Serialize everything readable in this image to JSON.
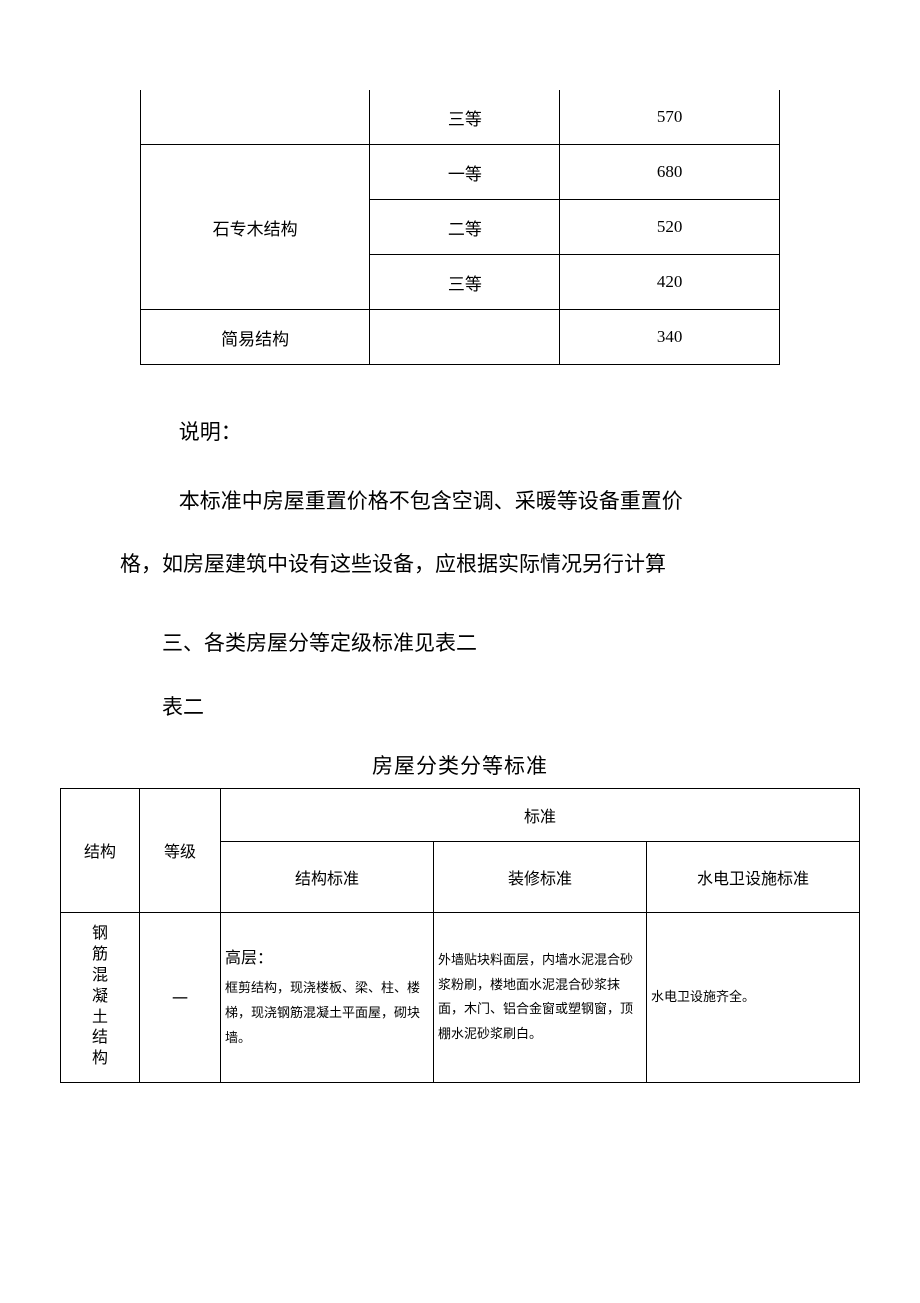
{
  "table1": {
    "rows": [
      {
        "structure": "",
        "grade": "三等",
        "value": "570",
        "rowspan": 1,
        "showStructure": false
      },
      {
        "structure": "石专木结构",
        "grade": "一等",
        "value": "680",
        "rowspan": 3,
        "showStructure": true
      },
      {
        "structure": "",
        "grade": "二等",
        "value": "520",
        "rowspan": 0,
        "showStructure": false
      },
      {
        "structure": "",
        "grade": "三等",
        "value": "420",
        "rowspan": 0,
        "showStructure": false
      },
      {
        "structure": "简易结构",
        "grade": "",
        "value": "340",
        "rowspan": 1,
        "showStructure": true
      }
    ]
  },
  "notes": {
    "label": "说明：",
    "line1": "本标准中房屋重置价格不包含空调、采暖等设备重置价",
    "line2": "格，如房屋建筑中设有这些设备，应根据实际情况另行计算",
    "item3": "三、各类房屋分等定级标准见表二",
    "table2label": "表二"
  },
  "table2": {
    "title": "房屋分类分等标准",
    "head": {
      "structure": "结构",
      "grade": "等级",
      "standard": "标准",
      "std1": "结构标准",
      "std2": "装修标准",
      "std3": "水电卫设施标准"
    },
    "row1": {
      "structure_chars": [
        "钢",
        "筋",
        "混",
        "凝",
        "土",
        "结",
        "构"
      ],
      "grade": "一",
      "std1_lead": "高层：",
      "std1_body": "框剪结构，现浇楼板、梁、柱、楼梯，现浇钢筋混凝土平面屋，砌块墙。",
      "std2_body": "外墙贴块料面层，内墙水泥混合砂浆粉刷，楼地面水泥混合砂浆抹面，木门、铝合金窗或塑钢窗，顶棚水泥砂浆刷白。",
      "std3_body": "水电卫设施齐全。"
    }
  }
}
